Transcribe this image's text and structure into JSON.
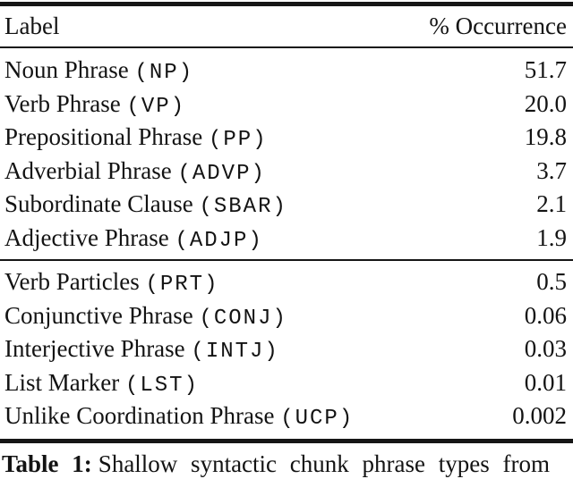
{
  "table": {
    "header": {
      "label": "Label",
      "occurrence": "% Occurrence"
    },
    "sections": [
      {
        "rows": [
          {
            "label": "Noun Phrase",
            "code": "NP",
            "value": "51.7"
          },
          {
            "label": "Verb Phrase",
            "code": "VP",
            "value": "20.0"
          },
          {
            "label": "Prepositional Phrase",
            "code": "PP",
            "value": "19.8"
          },
          {
            "label": "Adverbial Phrase",
            "code": "ADVP",
            "value": "3.7"
          },
          {
            "label": "Subordinate Clause",
            "code": "SBAR",
            "value": "2.1"
          },
          {
            "label": "Adjective Phrase",
            "code": "ADJP",
            "value": "1.9"
          }
        ]
      },
      {
        "rows": [
          {
            "label": "Verb Particles",
            "code": "PRT",
            "value": "0.5"
          },
          {
            "label": "Conjunctive Phrase",
            "code": "CONJ",
            "value": "0.06"
          },
          {
            "label": "Interjective Phrase",
            "code": "INTJ",
            "value": "0.03"
          },
          {
            "label": "List Marker",
            "code": "LST",
            "value": "0.01"
          },
          {
            "label": "Unlike Coordination Phrase",
            "code": "UCP",
            "value": "0.002"
          }
        ]
      }
    ]
  },
  "caption": {
    "label": "Table 1:",
    "text": "Shallow syntactic chunk phrase types from"
  },
  "colors": {
    "rule": "#161616",
    "text": "#131313",
    "background": "#ffffff"
  }
}
